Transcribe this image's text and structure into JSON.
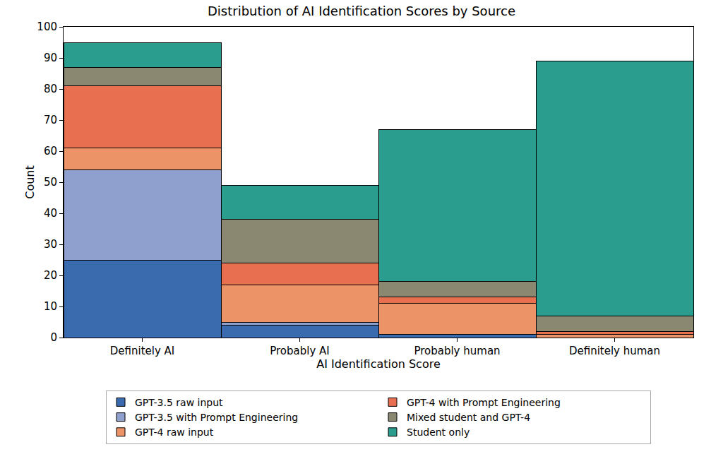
{
  "chart_data": {
    "type": "bar",
    "title": "Distribution of AI Identification Scores by Source",
    "x_label": "AI Identification Score",
    "y_label": "Count",
    "categories": [
      "Definitely AI",
      "Probably AI",
      "Probably human",
      "Definitely human"
    ],
    "series": [
      {
        "name": "GPT-3.5 raw input",
        "color": "#3a6baf",
        "values": [
          25,
          4,
          1,
          0
        ]
      },
      {
        "name": "GPT-3.5 with Prompt Engineering",
        "color": "#8fa0cf",
        "values": [
          29,
          1,
          0,
          0
        ]
      },
      {
        "name": "GPT-4 raw input",
        "color": "#ec9468",
        "values": [
          7,
          12,
          10,
          1
        ]
      },
      {
        "name": "GPT-4 with Prompt Engineering",
        "color": "#e87050",
        "values": [
          20,
          7,
          2,
          1
        ]
      },
      {
        "name": "Mixed student and GPT-4",
        "color": "#8a8870",
        "values": [
          6,
          14,
          5,
          5
        ]
      },
      {
        "name": "Student only",
        "color": "#2a9d8f",
        "values": [
          8,
          11,
          49,
          82
        ]
      }
    ],
    "ylim": [
      0,
      100
    ],
    "yticks": [
      0,
      10,
      20,
      30,
      40,
      50,
      60,
      70,
      80,
      90,
      100
    ],
    "stacked": true,
    "legend": "bottom",
    "grid": false
  }
}
